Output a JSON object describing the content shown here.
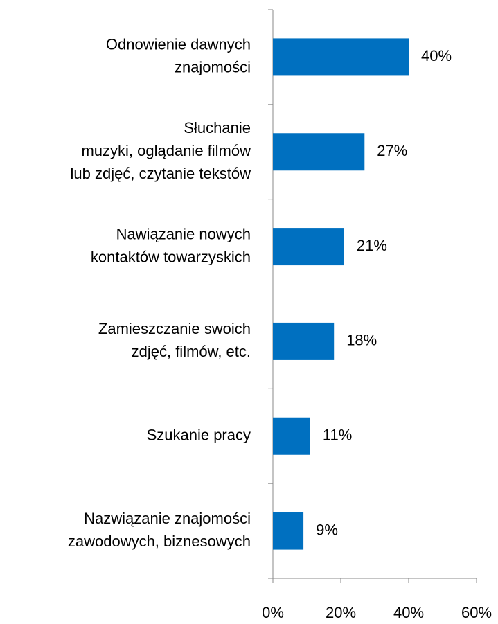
{
  "chart_data": {
    "type": "bar",
    "orientation": "horizontal",
    "categories": [
      [
        "Odnowienie dawnych",
        "znajomości"
      ],
      [
        "Słuchanie",
        "muzyki, oglądanie filmów",
        "lub zdjęć, czytanie tekstów"
      ],
      [
        "Nawiązanie nowych",
        "kontaktów towarzyskich"
      ],
      [
        "Zamieszczanie swoich",
        "zdjęć, filmów, etc."
      ],
      [
        "Szukanie pracy"
      ],
      [
        "Nazwiązanie znajomości",
        "zawodowych, biznesowych"
      ]
    ],
    "values": [
      40,
      27,
      21,
      18,
      11,
      9
    ],
    "value_labels": [
      "40%",
      "27%",
      "21%",
      "18%",
      "11%",
      "9%"
    ],
    "color": "#0070c0",
    "xlim": [
      0,
      60
    ],
    "xticks": [
      {
        "value": 0,
        "label": "0%"
      },
      {
        "value": 20,
        "label": "20%"
      },
      {
        "value": 40,
        "label": "40%"
      },
      {
        "value": 60,
        "label": "60%"
      }
    ],
    "grid": false
  }
}
